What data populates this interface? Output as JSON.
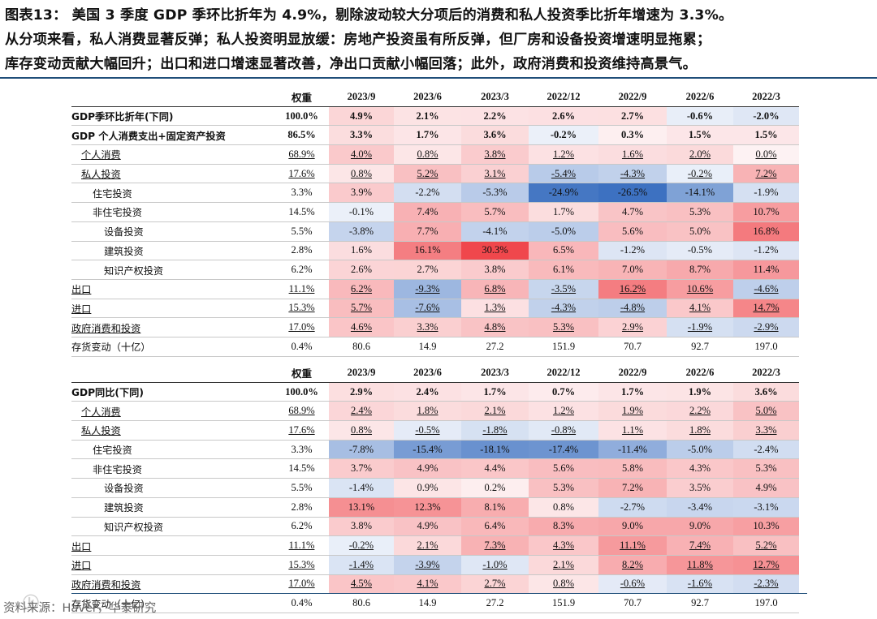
{
  "header": {
    "lines": [
      "图表13：  美国 3 季度 GDP 季环比折年为 4.9%，剔除波动较大分项后的消费和私人投资季比折年增速为 3.3%。",
      "从分项来看，私人消费显著反弹；私人投资明显放缓：房地产投资虽有所反弹，但厂房和设备投资增速明显拖累；",
      "库存变动贡献大幅回升；出口和进口增速显著改善，净出口贡献小幅回落；此外，政府消费和投资维持高景气。"
    ]
  },
  "columns": [
    "权重",
    "2023/9",
    "2023/6",
    "2023/3",
    "2022/12",
    "2022/9",
    "2022/6",
    "2022/3"
  ],
  "table1": [
    {
      "label": "GDP季环比折年(下同)",
      "indent": 0,
      "bold": true,
      "weight": "100.0%",
      "cells": [
        "4.9%",
        "2.1%",
        "2.2%",
        "2.6%",
        "2.7%",
        "-0.6%",
        "-2.0%"
      ],
      "v": [
        4.9,
        2.1,
        2.2,
        2.6,
        2.7,
        -0.6,
        -2.0
      ]
    },
    {
      "label": "GDP 个人消费支出+固定资产投资",
      "indent": 0,
      "bold": true,
      "weight": "86.5%",
      "cells": [
        "3.3%",
        "1.7%",
        "3.6%",
        "-0.2%",
        "0.3%",
        "1.5%",
        "1.5%"
      ],
      "v": [
        3.3,
        1.7,
        3.6,
        -0.2,
        0.3,
        1.5,
        1.5
      ]
    },
    {
      "label": "个人消费",
      "indent": 1,
      "underline": true,
      "weight": "68.9%",
      "cells": [
        "4.0%",
        "0.8%",
        "3.8%",
        "1.2%",
        "1.6%",
        "2.0%",
        "0.0%"
      ],
      "v": [
        4.0,
        0.8,
        3.8,
        1.2,
        1.6,
        2.0,
        0.0
      ]
    },
    {
      "label": "私人投资",
      "indent": 1,
      "underline": true,
      "weight": "17.6%",
      "cells": [
        "0.8%",
        "5.2%",
        "3.1%",
        "-5.4%",
        "-4.3%",
        "-0.2%",
        "7.2%"
      ],
      "v": [
        0.8,
        5.2,
        3.1,
        -5.4,
        -4.3,
        -0.2,
        7.2
      ]
    },
    {
      "label": "住宅投资",
      "indent": 2,
      "weight": "3.3%",
      "cells": [
        "3.9%",
        "-2.2%",
        "-5.3%",
        "-24.9%",
        "-26.5%",
        "-14.1%",
        "-1.9%"
      ],
      "v": [
        3.9,
        -2.2,
        -5.3,
        -24.9,
        -26.5,
        -14.1,
        -1.9
      ]
    },
    {
      "label": "非住宅投资",
      "indent": 2,
      "weight": "14.5%",
      "cells": [
        "-0.1%",
        "7.4%",
        "5.7%",
        "1.7%",
        "4.7%",
        "5.3%",
        "10.7%"
      ],
      "v": [
        -0.1,
        7.4,
        5.7,
        1.7,
        4.7,
        5.3,
        10.7
      ]
    },
    {
      "label": "设备投资",
      "indent": 3,
      "weight": "5.5%",
      "cells": [
        "-3.8%",
        "7.7%",
        "-4.1%",
        "-5.0%",
        "5.6%",
        "5.0%",
        "16.8%"
      ],
      "v": [
        -3.8,
        7.7,
        -4.1,
        -5.0,
        5.6,
        5.0,
        16.8
      ]
    },
    {
      "label": "建筑投资",
      "indent": 3,
      "weight": "2.8%",
      "cells": [
        "1.6%",
        "16.1%",
        "30.3%",
        "6.5%",
        "-1.2%",
        "-0.5%",
        "-1.2%"
      ],
      "v": [
        1.6,
        16.1,
        30.3,
        6.5,
        -1.2,
        -0.5,
        -1.2
      ]
    },
    {
      "label": "知识产权投资",
      "indent": 3,
      "weight": "6.2%",
      "cells": [
        "2.6%",
        "2.7%",
        "3.8%",
        "6.1%",
        "7.0%",
        "8.7%",
        "11.4%"
      ],
      "v": [
        2.6,
        2.7,
        3.8,
        6.1,
        7.0,
        8.7,
        11.4
      ]
    },
    {
      "label": "出口",
      "indent": 0,
      "underline": true,
      "weight": "11.1%",
      "wu": true,
      "cells": [
        "6.2%",
        "-9.3%",
        "6.8%",
        "-3.5%",
        "16.2%",
        "10.6%",
        "-4.6%"
      ],
      "v": [
        6.2,
        -9.3,
        6.8,
        -3.5,
        16.2,
        10.6,
        -4.6
      ],
      "cu": true
    },
    {
      "label": "进口",
      "indent": 0,
      "underline": true,
      "weight": "15.3%",
      "wu": true,
      "cells": [
        "5.7%",
        "-7.6%",
        "1.3%",
        "-4.3%",
        "-4.8%",
        "4.1%",
        "14.7%"
      ],
      "v": [
        5.7,
        -7.6,
        1.3,
        -4.3,
        -4.8,
        4.1,
        14.7
      ],
      "cu": true
    },
    {
      "label": "政府消费和投资",
      "indent": 0,
      "underline": true,
      "weight": "17.0%",
      "wu": true,
      "cells": [
        "4.6%",
        "3.3%",
        "4.8%",
        "5.3%",
        "2.9%",
        "-1.9%",
        "-2.9%"
      ],
      "v": [
        4.6,
        3.3,
        4.8,
        5.3,
        2.9,
        -1.9,
        -2.9
      ],
      "cu": true
    },
    {
      "label": "存货变动（十亿）",
      "indent": 0,
      "weight": "0.4%",
      "cells": [
        "80.6",
        "14.9",
        "27.2",
        "151.9",
        "70.7",
        "92.7",
        "197.0"
      ],
      "v": null
    }
  ],
  "table2": [
    {
      "label": "GDP同比(下同)",
      "indent": 0,
      "bold": true,
      "weight": "100.0%",
      "cells": [
        "2.9%",
        "2.4%",
        "1.7%",
        "0.7%",
        "1.7%",
        "1.9%",
        "3.6%"
      ],
      "v": [
        2.9,
        2.4,
        1.7,
        0.7,
        1.7,
        1.9,
        3.6
      ]
    },
    {
      "label": "个人消费",
      "indent": 1,
      "underline": true,
      "weight": "68.9%",
      "cells": [
        "2.4%",
        "1.8%",
        "2.1%",
        "1.2%",
        "1.9%",
        "2.2%",
        "5.0%"
      ],
      "v": [
        2.4,
        1.8,
        2.1,
        1.2,
        1.9,
        2.2,
        5.0
      ]
    },
    {
      "label": "私人投资",
      "indent": 1,
      "underline": true,
      "weight": "17.6%",
      "cells": [
        "0.8%",
        "-0.5%",
        "-1.8%",
        "-0.8%",
        "1.1%",
        "1.8%",
        "3.3%"
      ],
      "v": [
        0.8,
        -0.5,
        -1.8,
        -0.8,
        1.1,
        1.8,
        3.3
      ]
    },
    {
      "label": "住宅投资",
      "indent": 2,
      "weight": "3.3%",
      "cells": [
        "-7.8%",
        "-15.4%",
        "-18.1%",
        "-17.4%",
        "-11.4%",
        "-5.0%",
        "-2.4%"
      ],
      "v": [
        -7.8,
        -15.4,
        -18.1,
        -17.4,
        -11.4,
        -5.0,
        -2.4
      ]
    },
    {
      "label": "非住宅投资",
      "indent": 2,
      "weight": "14.5%",
      "cells": [
        "3.7%",
        "4.9%",
        "4.4%",
        "5.6%",
        "5.8%",
        "4.3%",
        "5.3%"
      ],
      "v": [
        3.7,
        4.9,
        4.4,
        5.6,
        5.8,
        4.3,
        5.3
      ]
    },
    {
      "label": "设备投资",
      "indent": 3,
      "weight": "5.5%",
      "cells": [
        "-1.4%",
        "0.9%",
        "0.2%",
        "5.3%",
        "7.2%",
        "3.5%",
        "4.9%"
      ],
      "v": [
        -1.4,
        0.9,
        0.2,
        5.3,
        7.2,
        3.5,
        4.9
      ]
    },
    {
      "label": "建筑投资",
      "indent": 3,
      "weight": "2.8%",
      "cells": [
        "13.1%",
        "12.3%",
        "8.1%",
        "0.8%",
        "-2.7%",
        "-3.4%",
        "-3.1%"
      ],
      "v": [
        13.1,
        12.3,
        8.1,
        0.8,
        -2.7,
        -3.4,
        -3.1
      ]
    },
    {
      "label": "知识产权投资",
      "indent": 3,
      "weight": "6.2%",
      "cells": [
        "3.8%",
        "4.9%",
        "6.4%",
        "8.3%",
        "9.0%",
        "9.0%",
        "10.3%"
      ],
      "v": [
        3.8,
        4.9,
        6.4,
        8.3,
        9.0,
        9.0,
        10.3
      ]
    },
    {
      "label": "出口",
      "indent": 0,
      "underline": true,
      "weight": "11.1%",
      "wu": true,
      "cells": [
        "-0.2%",
        "2.1%",
        "7.3%",
        "4.3%",
        "11.1%",
        "7.4%",
        "5.2%"
      ],
      "v": [
        -0.2,
        2.1,
        7.3,
        4.3,
        11.1,
        7.4,
        5.2
      ],
      "cu": true
    },
    {
      "label": "进口",
      "indent": 0,
      "underline": true,
      "weight": "15.3%",
      "wu": true,
      "cells": [
        "-1.4%",
        "-3.9%",
        "-1.0%",
        "2.1%",
        "8.2%",
        "11.8%",
        "12.7%"
      ],
      "v": [
        -1.4,
        -3.9,
        -1.0,
        2.1,
        8.2,
        11.8,
        12.7
      ],
      "cu": true
    },
    {
      "label": "政府消费和投资",
      "indent": 0,
      "underline": true,
      "weight": "17.0%",
      "wu": true,
      "cells": [
        "4.5%",
        "4.1%",
        "2.7%",
        "0.8%",
        "-0.6%",
        "-1.6%",
        "-2.3%"
      ],
      "v": [
        4.5,
        4.1,
        2.7,
        0.8,
        -0.6,
        -1.6,
        -2.3
      ],
      "cu": true
    },
    {
      "label": "存货变动（十亿）",
      "indent": 0,
      "weight": "0.4%",
      "cells": [
        "80.6",
        "14.9",
        "27.2",
        "151.9",
        "70.7",
        "92.7",
        "197.0"
      ],
      "v": null
    }
  ],
  "colors": {
    "pos": "#f0474c",
    "neg": "#3a6fc0"
  },
  "footer": {
    "source": "资料来源：Haver，华泰研究"
  }
}
